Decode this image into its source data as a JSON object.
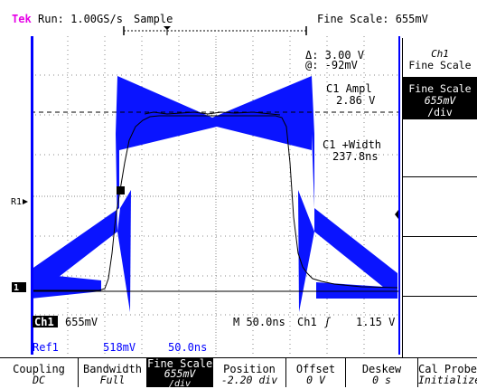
{
  "header": {
    "brand": "Tek",
    "run_status": "Run: 1.00GS/s",
    "acq_mode": "Sample",
    "fine_scale": "Fine Scale: 655mV"
  },
  "screen": {
    "delta_readout": "Δ: 3.00 V",
    "at_readout": "@: -92mV",
    "meas1_label": "C1 Ampl",
    "meas1_value": "2.86 V",
    "meas2_label": "C1 +Width",
    "meas2_value": "237.8ns",
    "ref_marker": "R1",
    "ch1_marker": "1",
    "ch1_label": "Ch1",
    "ch1_scale": "655mV",
    "timebase": "M 50.0ns",
    "trig_channel": "Ch1",
    "trig_level": "1.15 V",
    "ref1_label": "Ref1",
    "ref1_scale": "518mV",
    "ref1_time": "50.0ns"
  },
  "side_menu": {
    "title_line1": "Ch1",
    "title_line2": "Fine Scale",
    "fine_label": "Fine Scale",
    "fine_value": "655mV",
    "fine_unit": "/div"
  },
  "bottom_menu": [
    {
      "label": "Coupling",
      "value": "DC"
    },
    {
      "label": "Bandwidth",
      "value": "Full"
    },
    {
      "label": "Fine Scale",
      "value": "655mV",
      "extra": "/div"
    },
    {
      "label": "Position",
      "value": "-2.20 div"
    },
    {
      "label": "Offset",
      "value": "0 V"
    },
    {
      "label": "Deskew",
      "value": "0 s"
    },
    {
      "label": "Cal Probe",
      "value": "Initialized"
    }
  ],
  "colors": {
    "brand": "#e600e6",
    "ref_waveform": "#0a14ff",
    "frame": "#0000ff"
  }
}
